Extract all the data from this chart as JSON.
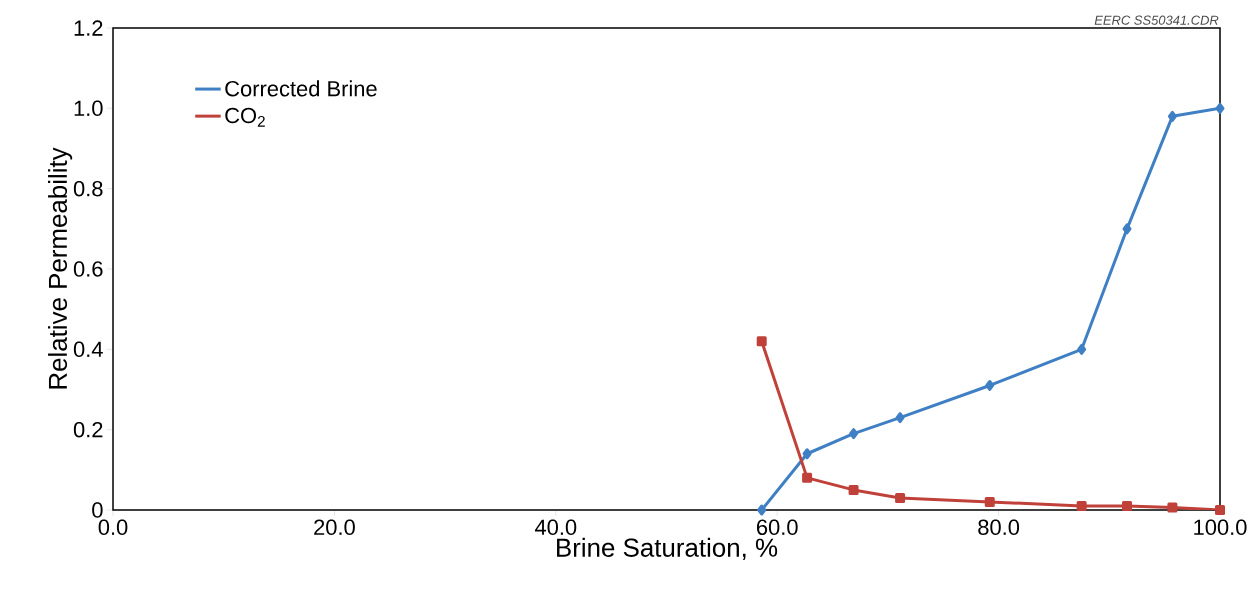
{
  "chart_data": {
    "type": "line",
    "xlabel": "Brine Saturation, %",
    "ylabel": "Relative Permeability",
    "annotations": [
      "EERC SS50341.CDR"
    ],
    "xlim": [
      0,
      100
    ],
    "ylim": [
      0,
      1.2
    ],
    "xticks": [
      {
        "value": 0,
        "label": "0.0"
      },
      {
        "value": 20,
        "label": "20.0"
      },
      {
        "value": 40,
        "label": "40.0"
      },
      {
        "value": 60,
        "label": "60.0"
      },
      {
        "value": 80,
        "label": "80.0"
      },
      {
        "value": 100,
        "label": "100.0"
      }
    ],
    "yticks": [
      0,
      0.2,
      0.4,
      0.6,
      0.8,
      {
        "value": 1.0,
        "label": "1.0"
      },
      {
        "value": 1.2,
        "label": "1.2"
      }
    ],
    "legend": "top left",
    "grid": false,
    "line_style": "solid",
    "series": [
      {
        "name": "Corrected Brine",
        "color": "#3f7fc4",
        "marker": "diamond",
        "x": [
          58.6,
          62.7,
          66.9,
          71.1,
          79.2,
          87.5,
          91.6,
          95.7,
          100
        ],
        "values": [
          0,
          0.14,
          0.19,
          0.23,
          0.31,
          0.4,
          0.7,
          0.98,
          1.0
        ]
      },
      {
        "name": "CO$_{2}$",
        "color": "#c0403a",
        "marker": "square",
        "x": [
          58.6,
          62.7,
          66.9,
          71.1,
          79.2,
          87.5,
          91.6,
          95.7,
          100
        ],
        "values": [
          0.42,
          0.08,
          0.05,
          0.03,
          0.02,
          0.01,
          0.01,
          0.006,
          0
        ]
      }
    ]
  }
}
